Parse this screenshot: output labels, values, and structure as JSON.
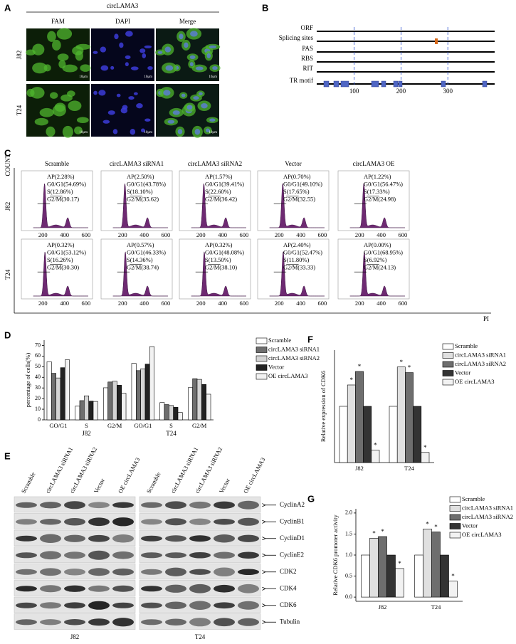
{
  "panel_a": {
    "label": "A",
    "title": "circLAMA3",
    "columns": [
      "FAM",
      "DAPI",
      "Merge"
    ],
    "rows": [
      "J82",
      "T24"
    ],
    "scale": "10μm"
  },
  "panel_b": {
    "label": "B",
    "tracks": [
      "ORF",
      "Splicing sites",
      "PAS",
      "RBS",
      "RIT",
      "TR motif"
    ],
    "xlim": [
      20,
      400
    ],
    "ticks": [
      100,
      200,
      300
    ]
  },
  "panel_c": {
    "label": "C",
    "y_label": "COUNT",
    "x_label": "PI",
    "columns": [
      "Scramble",
      "circLAMA3 siRNA1",
      "circLAMA3 siRNA2",
      "Vector",
      "circLAMA3 OE"
    ],
    "rows": [
      "J82",
      "T24"
    ],
    "xlim": [
      0,
      660
    ],
    "x_ticks": [
      200,
      400,
      600
    ],
    "stats": [
      [
        [
          "AP(2.28%)",
          "G0/G1(54.69%)",
          "S(12.86%)",
          "G2/M(30.17)"
        ],
        [
          "AP(2.50%)",
          "G0/G1(43.78%)",
          "S(18.10%)",
          "G2/M(35.62)"
        ],
        [
          "AP(1.57%)",
          "G0/G1(39.41%)",
          "S(22.60%)",
          "G2/M(36.42)"
        ],
        [
          "AP(0.70%)",
          "G0/G1(49.10%)",
          "S(17.65%)",
          "G2/M(32.55)"
        ],
        [
          "AP(1.22%)",
          "G0/G1(56.47%)",
          "S(17.33%)",
          "G2/M(24.98)"
        ]
      ],
      [
        [
          "AP(0.32%)",
          "G0/G1(53.12%)",
          "S(16.26%)",
          "G2/M(30.30)"
        ],
        [
          "AP(0.57%)",
          "G0/G1(46.33%)",
          "S(14.36%)",
          "G2/M(38.74)"
        ],
        [
          "AP(0.32%)",
          "G0/G1(48.08%)",
          "S(13.50%)",
          "G2/M(38.10)"
        ],
        [
          "AP(2.40%)",
          "G0/G1(52.47%)",
          "S(11.80%)",
          "G2/M(33.33)"
        ],
        [
          "AP(0.00%)",
          "G0/G1(68.95%)",
          "S(6.92%)",
          "G2/M(24.13)"
        ]
      ]
    ]
  },
  "panel_e": {
    "label": "E",
    "lanes": [
      "Scramble",
      "circLAMA3 siRNA1",
      "circLAMA3 siRNA2",
      "Vector",
      "OE circLAMA3"
    ],
    "cells": [
      "J82",
      "T24"
    ],
    "proteins": [
      "CyclinA2",
      "CyclinB1",
      "CyclinD1",
      "CyclinE2",
      "CDK2",
      "CDK4",
      "CDK6",
      "Tubulin"
    ]
  },
  "chart_data": [
    {
      "type": "bar",
      "label": "D",
      "y_label": "percentage of cells(%)",
      "categories": [
        "GO/G1",
        "S",
        "G2/M",
        "GO/G1",
        "S",
        "G2/M"
      ],
      "group_labels": [
        "J82",
        "T24"
      ],
      "ylim": [
        0,
        75
      ],
      "yticks": [
        0,
        10,
        20,
        30,
        40,
        50,
        60,
        70
      ],
      "series": [
        {
          "name": "Scramble",
          "color": "#ffffff",
          "values": [
            54.69,
            12.86,
            30.17,
            53.12,
            16.26,
            30.3
          ]
        },
        {
          "name": "circLAMA3 siRNA1",
          "color": "#6e6e6e",
          "values": [
            43.78,
            18.1,
            35.62,
            46.33,
            14.36,
            38.74
          ]
        },
        {
          "name": "circLAMA3 siRNA2",
          "color": "#d4d4d4",
          "values": [
            39.41,
            22.6,
            36.42,
            48.08,
            13.5,
            38.1
          ]
        },
        {
          "name": "Vector",
          "color": "#222222",
          "values": [
            49.1,
            17.65,
            32.55,
            52.47,
            11.8,
            33.33
          ]
        },
        {
          "name": "OE circLAMA3",
          "color": "#f2f2f2",
          "values": [
            56.47,
            17.33,
            24.98,
            68.95,
            6.92,
            24.13
          ]
        }
      ]
    },
    {
      "type": "bar",
      "label": "F",
      "y_label": "Relative expression of CDK6",
      "categories": [
        "J82",
        "T24"
      ],
      "ylim": [
        0,
        2
      ],
      "series": [
        {
          "name": "Scramble",
          "color": "#ffffff",
          "values": [
            1.0,
            1.0
          ]
        },
        {
          "name": "circLAMA3 siRNA1",
          "color": "#e0e0e0",
          "values": [
            1.38,
            1.7
          ],
          "annotations": [
            "*",
            "*"
          ]
        },
        {
          "name": "circLAMA3 siRNA2",
          "color": "#6e6e6e",
          "values": [
            1.62,
            1.6
          ],
          "annotations": [
            "*",
            "*"
          ]
        },
        {
          "name": "Vector",
          "color": "#333333",
          "values": [
            1.0,
            1.0
          ]
        },
        {
          "name": "OE circLAMA3",
          "color": "#f2f2f2",
          "values": [
            0.22,
            0.18
          ],
          "annotations": [
            "*",
            "*"
          ]
        }
      ]
    },
    {
      "type": "bar",
      "label": "G",
      "y_label": "Relative CDK6 promoter activity",
      "categories": [
        "J82",
        "T24"
      ],
      "ylim": [
        -0.1,
        2.1
      ],
      "yticks": [
        {
          "value": 0,
          "label": "0.0"
        },
        {
          "value": 0.5,
          "label": "0.5"
        },
        {
          "value": 1,
          "label": "1.0"
        },
        {
          "value": 1.5,
          "label": "1.5"
        },
        {
          "value": 2,
          "label": "2.0"
        }
      ],
      "series": [
        {
          "name": "Scramble",
          "color": "#ffffff",
          "values": [
            1.0,
            1.0
          ]
        },
        {
          "name": "circLAMA3 siRNA1",
          "color": "#e0e0e0",
          "values": [
            1.4,
            1.62
          ],
          "annotations": [
            "*",
            "*"
          ]
        },
        {
          "name": "circLAMA3 siRNA2",
          "color": "#6e6e6e",
          "values": [
            1.44,
            1.55
          ],
          "annotations": [
            "*",
            "*"
          ]
        },
        {
          "name": "Vector",
          "color": "#333333",
          "values": [
            1.0,
            1.0
          ]
        },
        {
          "name": "OE circLAMA3",
          "color": "#f2f2f2",
          "values": [
            0.68,
            0.38
          ],
          "annotations": [
            "*",
            "*"
          ]
        }
      ]
    }
  ]
}
